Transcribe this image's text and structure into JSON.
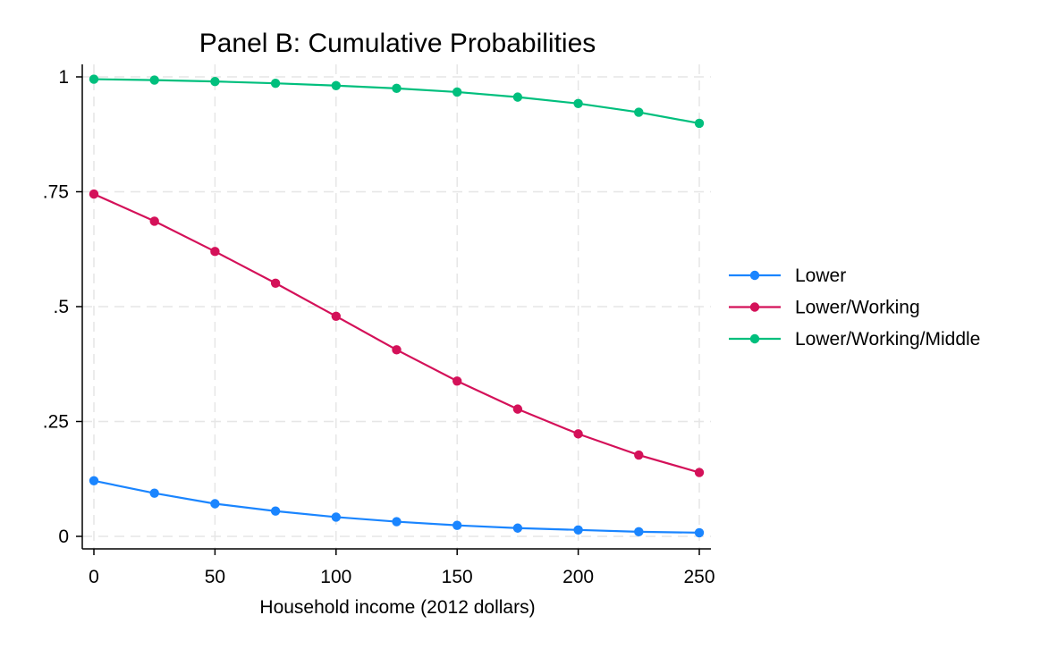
{
  "chart_data": {
    "type": "line",
    "title": "Panel B: Cumulative Probabilities",
    "xlabel": "Household income (2012 dollars)",
    "ylabel": "",
    "x": [
      0,
      25,
      50,
      75,
      100,
      125,
      150,
      175,
      200,
      225,
      250
    ],
    "xlim": [
      0,
      250
    ],
    "ylim": [
      0,
      1
    ],
    "xticks": [
      0,
      50,
      100,
      150,
      200,
      250
    ],
    "xtick_labels": [
      "0",
      "50",
      "100",
      "150",
      "200",
      "250"
    ],
    "yticks": [
      0,
      0.25,
      0.5,
      0.75,
      1
    ],
    "ytick_labels": [
      "0",
      ".25",
      ".5",
      ".75",
      "1"
    ],
    "grid": true,
    "legend_position": "right",
    "series": [
      {
        "name": "Lower",
        "color": "#1a85ff",
        "values": [
          0.121,
          0.094,
          0.071,
          0.055,
          0.042,
          0.032,
          0.024,
          0.018,
          0.014,
          0.01,
          0.008
        ]
      },
      {
        "name": "Lower/Working",
        "color": "#d41159",
        "values": [
          0.745,
          0.686,
          0.62,
          0.551,
          0.479,
          0.406,
          0.338,
          0.277,
          0.223,
          0.177,
          0.139
        ]
      },
      {
        "name": "Lower/Working/Middle",
        "color": "#00bf7d",
        "values": [
          0.995,
          0.993,
          0.99,
          0.986,
          0.981,
          0.975,
          0.967,
          0.956,
          0.942,
          0.923,
          0.899
        ]
      }
    ]
  }
}
